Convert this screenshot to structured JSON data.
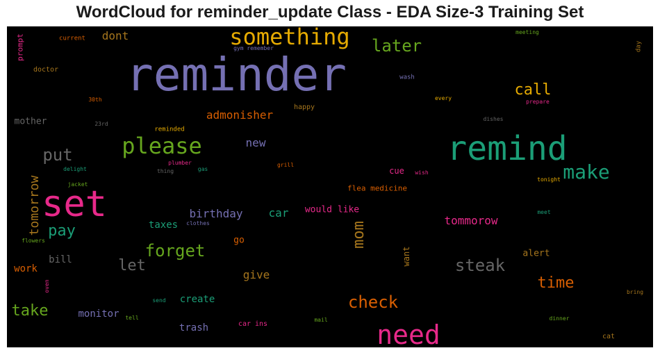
{
  "chart_data": {
    "type": "wordcloud",
    "title": "WordCloud for reminder_update Class - EDA Size-3 Training Set",
    "background": "#000000",
    "palette": [
      "#7570b3",
      "#1b9e77",
      "#e7298a",
      "#e6ab02",
      "#66a61e",
      "#d95f02",
      "#a6761d",
      "#666666"
    ],
    "words": [
      {
        "text": "reminder",
        "color": "#7570b3"
      },
      {
        "text": "remind",
        "color": "#1b9e77"
      },
      {
        "text": "set",
        "color": "#e7298a"
      },
      {
        "text": "something",
        "color": "#e6ab02"
      },
      {
        "text": "need",
        "color": "#e7298a"
      },
      {
        "text": "please",
        "color": "#66a61e"
      },
      {
        "text": "make",
        "color": "#1b9e77"
      },
      {
        "text": "check",
        "color": "#d95f02"
      },
      {
        "text": "later",
        "color": "#66a61e"
      },
      {
        "text": "forget",
        "color": "#66a61e"
      },
      {
        "text": "put",
        "color": "#666666"
      },
      {
        "text": "steak",
        "color": "#666666"
      },
      {
        "text": "call",
        "color": "#e6ab02"
      },
      {
        "text": "time",
        "color": "#d95f02"
      },
      {
        "text": "pay",
        "color": "#1b9e77"
      },
      {
        "text": "take",
        "color": "#66a61e"
      },
      {
        "text": "mom",
        "color": "#a6761d"
      },
      {
        "text": "let",
        "color": "#666666"
      },
      {
        "text": "tomorrow",
        "color": "#a6761d"
      },
      {
        "text": "dont",
        "color": "#a6761d"
      },
      {
        "text": "admonisher",
        "color": "#d95f02"
      },
      {
        "text": "new",
        "color": "#7570b3"
      },
      {
        "text": "tommorow",
        "color": "#e7298a"
      },
      {
        "text": "birthday",
        "color": "#7570b3"
      },
      {
        "text": "car",
        "color": "#1b9e77"
      },
      {
        "text": "give",
        "color": "#a6761d"
      },
      {
        "text": "taxes",
        "color": "#1b9e77"
      },
      {
        "text": "bill",
        "color": "#666666"
      },
      {
        "text": "work",
        "color": "#d95f02"
      },
      {
        "text": "monitor",
        "color": "#7570b3"
      },
      {
        "text": "create",
        "color": "#1b9e77"
      },
      {
        "text": "trash",
        "color": "#7570b3"
      },
      {
        "text": "would like",
        "color": "#e7298a"
      },
      {
        "text": "alert",
        "color": "#a6761d"
      },
      {
        "text": "mother",
        "color": "#666666"
      },
      {
        "text": "flea medicine",
        "color": "#d95f02"
      },
      {
        "text": "cue",
        "color": "#e7298a"
      },
      {
        "text": "go",
        "color": "#d95f02"
      },
      {
        "text": "want",
        "color": "#a6761d"
      },
      {
        "text": "prompt",
        "color": "#e7298a"
      },
      {
        "text": "doctor",
        "color": "#a6761d"
      },
      {
        "text": "current",
        "color": "#d95f02"
      },
      {
        "text": "gym remember",
        "color": "#7570b3"
      },
      {
        "text": "meeting",
        "color": "#66a61e"
      },
      {
        "text": "day",
        "color": "#a6761d"
      },
      {
        "text": "wash",
        "color": "#7570b3"
      },
      {
        "text": "30th",
        "color": "#d95f02"
      },
      {
        "text": "every",
        "color": "#e6ab02"
      },
      {
        "text": "prepare",
        "color": "#e7298a"
      },
      {
        "text": "happy",
        "color": "#a6761d"
      },
      {
        "text": "23rd",
        "color": "#666666"
      },
      {
        "text": "reminded",
        "color": "#e6ab02"
      },
      {
        "text": "dishes",
        "color": "#666666"
      },
      {
        "text": "delight",
        "color": "#1b9e77"
      },
      {
        "text": "thing",
        "color": "#666666"
      },
      {
        "text": "plumber",
        "color": "#e7298a"
      },
      {
        "text": "gas",
        "color": "#1b9e77"
      },
      {
        "text": "grill",
        "color": "#d95f02"
      },
      {
        "text": "wish",
        "color": "#e7298a"
      },
      {
        "text": "jacket",
        "color": "#66a61e"
      },
      {
        "text": "tonight",
        "color": "#e6ab02"
      },
      {
        "text": "clothes",
        "color": "#7570b3"
      },
      {
        "text": "meet",
        "color": "#1b9e77"
      },
      {
        "text": "flowers",
        "color": "#66a61e"
      },
      {
        "text": "oven",
        "color": "#e7298a"
      },
      {
        "text": "send",
        "color": "#1b9e77"
      },
      {
        "text": "tell",
        "color": "#66a61e"
      },
      {
        "text": "car ins",
        "color": "#e7298a"
      },
      {
        "text": "mail",
        "color": "#66a61e"
      },
      {
        "text": "dinner",
        "color": "#66a61e"
      },
      {
        "text": "cat",
        "color": "#a6761d"
      },
      {
        "text": "bring",
        "color": "#a6761d"
      }
    ]
  }
}
